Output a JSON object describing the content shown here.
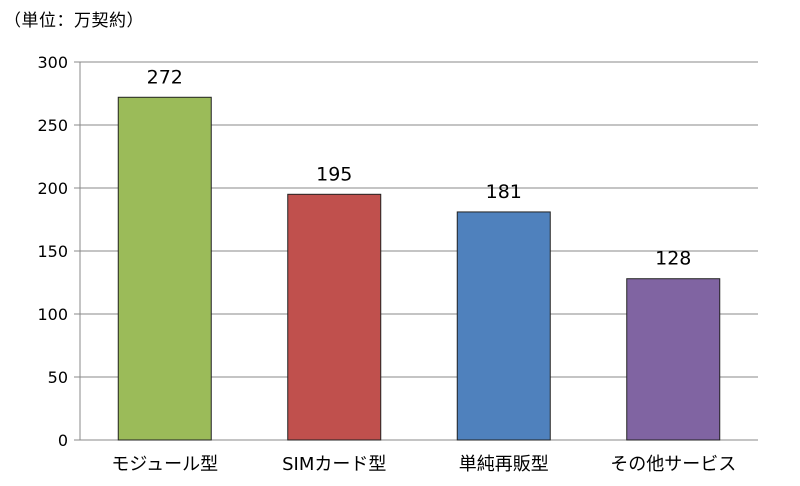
{
  "chart_data": {
    "type": "bar",
    "unit_label": "（単位：万契約）",
    "categories": [
      "モジュール型",
      "SIMカード型",
      "単純再販型",
      "その他サービス"
    ],
    "values": [
      272,
      195,
      181,
      128
    ],
    "colors": [
      "#9BBB59",
      "#C0504D",
      "#4F81BD",
      "#8064A2"
    ],
    "ylim": [
      0,
      300
    ],
    "yticks": [
      0,
      50,
      100,
      150,
      200,
      250,
      300
    ],
    "grid": true,
    "legend": "none",
    "title": "",
    "xlabel": "",
    "ylabel": ""
  }
}
